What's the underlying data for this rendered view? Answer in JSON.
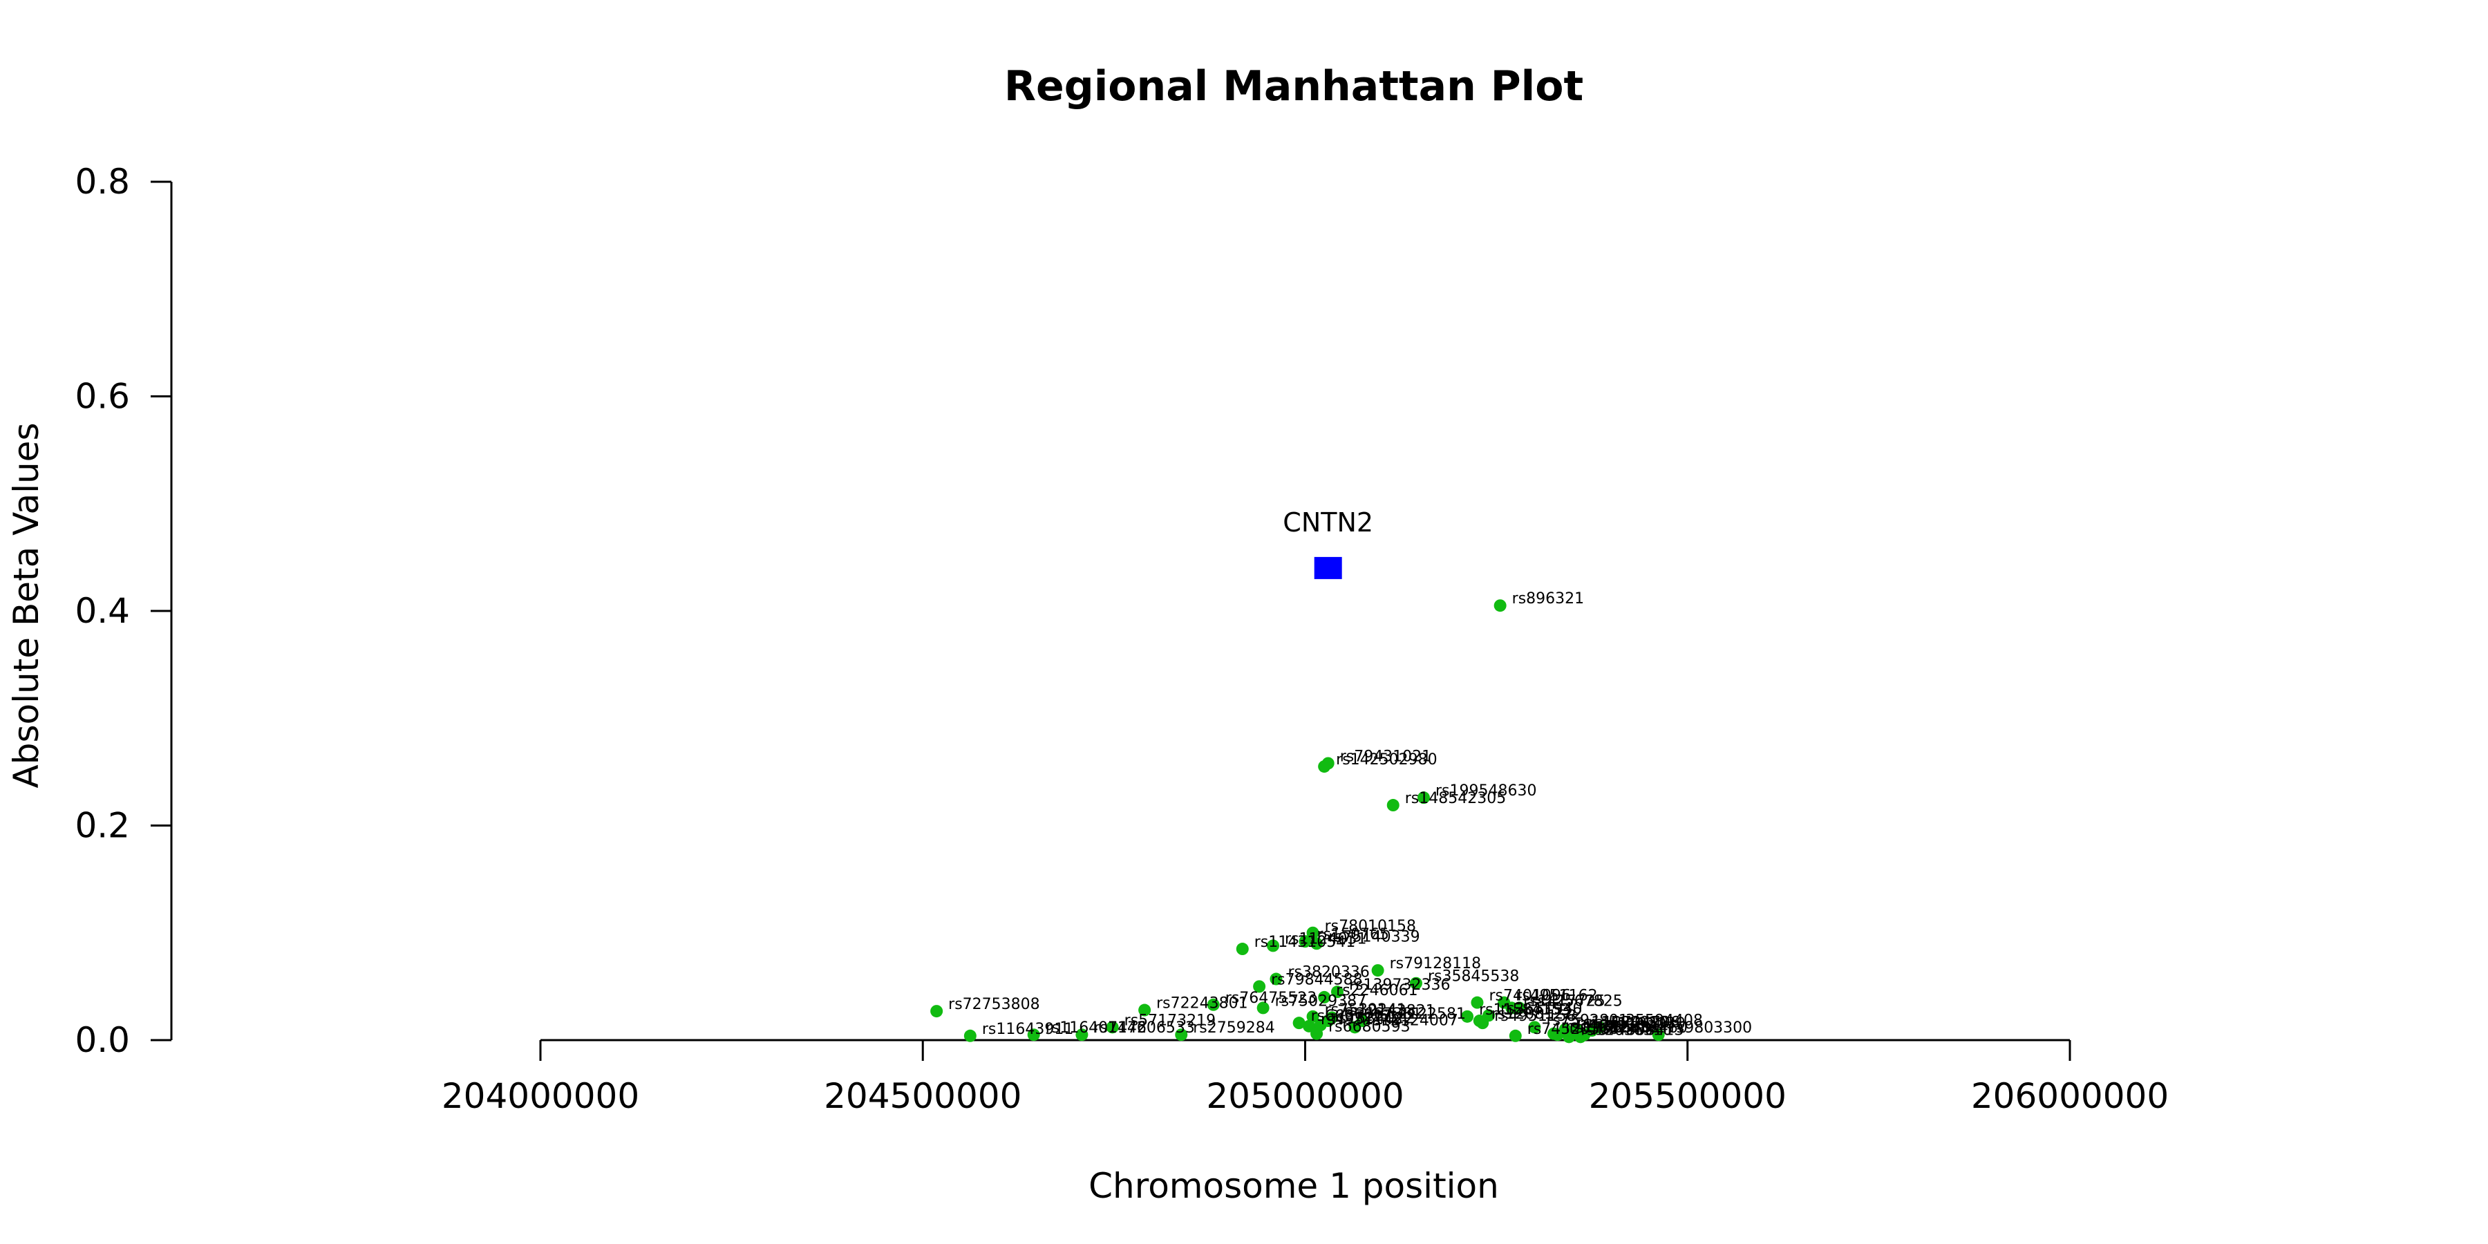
{
  "chart_data": {
    "type": "scatter",
    "title": "Regional Manhattan Plot",
    "xlabel": "Chromosome 1 position",
    "ylabel": "Absolute Beta Values",
    "xlim": [
      204000000,
      206000000
    ],
    "ylim": [
      0,
      0.8
    ],
    "x_ticks": [
      204000000,
      204500000,
      205000000,
      205500000,
      206000000
    ],
    "x_tick_labels": [
      "204000000",
      "204500000",
      "205000000",
      "205500000",
      "206000000"
    ],
    "y_ticks": [
      0.0,
      0.2,
      0.4,
      0.6,
      0.8
    ],
    "y_tick_labels": [
      "0.0",
      "0.2",
      "0.4",
      "0.6",
      "0.8"
    ],
    "grid": false,
    "legend": "none",
    "snp_color": "#11bb11",
    "gene_color": "#0000ff",
    "gene": {
      "name": "CNTN2",
      "x": 205030000,
      "y": 0.44
    },
    "snps": [
      {
        "name": "rs896321",
        "x": 205255000,
        "y": 0.405
      },
      {
        "name": "rs79431021",
        "x": 205030000,
        "y": 0.258
      },
      {
        "name": "rs142502980",
        "x": 205025000,
        "y": 0.255
      },
      {
        "name": "rs199548630",
        "x": 205155000,
        "y": 0.226
      },
      {
        "name": "rs148542305",
        "x": 205115000,
        "y": 0.219
      },
      {
        "name": "rs78010158",
        "x": 205010000,
        "y": 0.1
      },
      {
        "name": "rs150765",
        "x": 205000000,
        "y": 0.092
      },
      {
        "name": "rs75140339",
        "x": 205015000,
        "y": 0.09
      },
      {
        "name": "rs1124031",
        "x": 204958000,
        "y": 0.088
      },
      {
        "name": "rs114310541",
        "x": 204918000,
        "y": 0.085
      },
      {
        "name": "rs79128118",
        "x": 205095000,
        "y": 0.065
      },
      {
        "name": "rs3820336",
        "x": 204962000,
        "y": 0.057
      },
      {
        "name": "rs79844588",
        "x": 204940000,
        "y": 0.05
      },
      {
        "name": "rs35845538",
        "x": 205145000,
        "y": 0.053
      },
      {
        "name": "rs139732336",
        "x": 205042000,
        "y": 0.045
      },
      {
        "name": "rs2246061",
        "x": 205025000,
        "y": 0.04
      },
      {
        "name": "rs7401096",
        "x": 205225000,
        "y": 0.035
      },
      {
        "name": "rs4951162",
        "x": 205260000,
        "y": 0.035
      },
      {
        "name": "rs1417725",
        "x": 205270000,
        "y": 0.03
      },
      {
        "name": "rs12567825",
        "x": 205280000,
        "y": 0.03
      },
      {
        "name": "rs76475523",
        "x": 204880000,
        "y": 0.033
      },
      {
        "name": "rs75029387",
        "x": 204945000,
        "y": 0.03
      },
      {
        "name": "rs72753808",
        "x": 204518000,
        "y": 0.027
      },
      {
        "name": "rs72243801",
        "x": 204790000,
        "y": 0.028
      },
      {
        "name": "rs2651940",
        "x": 205240000,
        "y": 0.023
      },
      {
        "name": "rs11584153",
        "x": 205212000,
        "y": 0.022
      },
      {
        "name": "rs7539241",
        "x": 205010000,
        "y": 0.022
      },
      {
        "name": "rs12143821",
        "x": 205035000,
        "y": 0.021
      },
      {
        "name": "rs6667381",
        "x": 205030000,
        "y": 0.018
      },
      {
        "name": "rs12122581",
        "x": 205075000,
        "y": 0.018
      },
      {
        "name": "rs12081222",
        "x": 205228000,
        "y": 0.018
      },
      {
        "name": "rs4951158",
        "x": 205232000,
        "y": 0.016
      },
      {
        "name": "rs6697217",
        "x": 204992000,
        "y": 0.016
      },
      {
        "name": "rs57173219",
        "x": 204748000,
        "y": 0.012
      },
      {
        "name": "rs4951148",
        "x": 205005000,
        "y": 0.013
      },
      {
        "name": "rs1534022",
        "x": 205020000,
        "y": 0.014
      },
      {
        "name": "rs12124007",
        "x": 205065000,
        "y": 0.012
      },
      {
        "name": "rs7592801",
        "x": 205300000,
        "y": 0.012
      },
      {
        "name": "rs35594408",
        "x": 205385000,
        "y": 0.012
      },
      {
        "name": "rs11584010",
        "x": 205340000,
        "y": 0.01
      },
      {
        "name": "rs12724706",
        "x": 205355000,
        "y": 0.01
      },
      {
        "name": "rs1192030",
        "x": 205375000,
        "y": 0.009
      },
      {
        "name": "rs116407472",
        "x": 204645000,
        "y": 0.005
      },
      {
        "name": "rs114606533",
        "x": 204708000,
        "y": 0.005
      },
      {
        "name": "rs2759284",
        "x": 204838000,
        "y": 0.005
      },
      {
        "name": "rs6680593",
        "x": 205015000,
        "y": 0.006
      },
      {
        "name": "rs11582113",
        "x": 205325000,
        "y": 0.006
      },
      {
        "name": "rs17485401",
        "x": 205330000,
        "y": 0.005
      },
      {
        "name": "rs12032460",
        "x": 205365000,
        "y": 0.005
      },
      {
        "name": "rs9803300",
        "x": 205462000,
        "y": 0.005
      },
      {
        "name": "rs11643911",
        "x": 204562000,
        "y": 0.004
      },
      {
        "name": "rs74520560",
        "x": 205275000,
        "y": 0.004
      },
      {
        "name": "rs74808413",
        "x": 205360000,
        "y": 0.003
      },
      {
        "name": "rs12036310",
        "x": 205345000,
        "y": 0.003
      }
    ]
  }
}
